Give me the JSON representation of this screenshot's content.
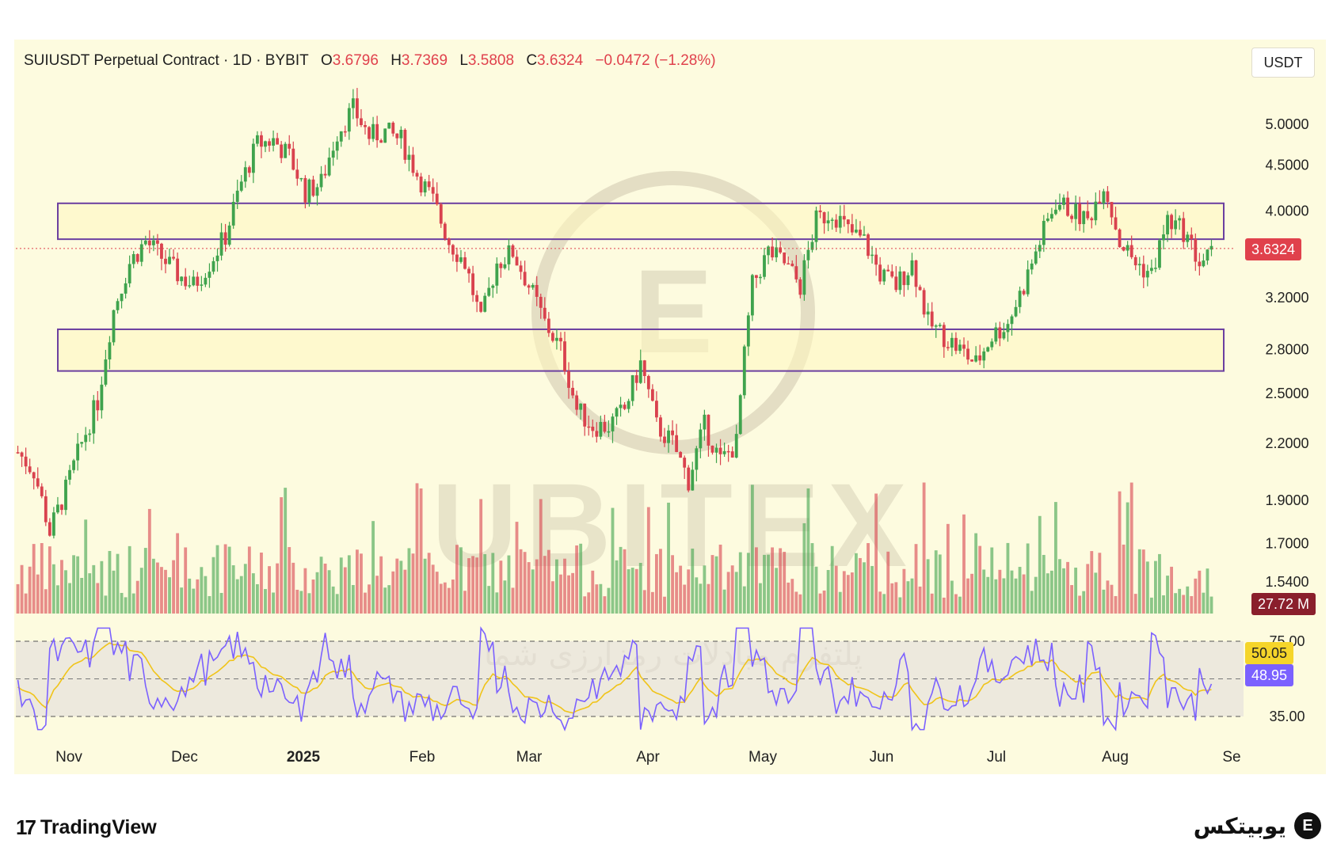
{
  "header": {
    "symbol": "SUIUSDT Perpetual Contract · 1D · BYBIT",
    "o_label": "O",
    "o_value": "3.6796",
    "h_label": "H",
    "h_value": "3.7369",
    "l_label": "L",
    "l_value": "3.5808",
    "c_label": "C",
    "c_value": "3.6324",
    "change": "−0.0472 (−1.28%)"
  },
  "currency_button": "USDT",
  "price_badge": "3.6324",
  "volume_badge": "27.72 M",
  "rsi_badges": {
    "ma": "50.05",
    "rsi": "48.95"
  },
  "watermark": {
    "brand": "UBITEX",
    "tagline": "پلتفرم مبادلات رمزارزی شما"
  },
  "footer": {
    "tradingview": "TradingView",
    "ubitex": "یوبیتکس"
  },
  "colors": {
    "up": "#3fa34d",
    "down": "#d9424e",
    "zone": "#6b3fa0",
    "rsi": "#7b61ff",
    "rsi_ma": "#f0c419",
    "price_line": "#e0414c"
  },
  "chart_data": {
    "type": "candlestick",
    "scale": "log",
    "price_axis_ticks": [
      5.0,
      4.5,
      4.0,
      3.2,
      2.8,
      2.5,
      2.2,
      1.9,
      1.7,
      1.54
    ],
    "price_axis_labels": [
      "5.0000",
      "4.5000",
      "4.0000",
      "3.2000",
      "2.8000",
      "2.5000",
      "2.2000",
      "1.9000",
      "1.7000",
      "1.5400"
    ],
    "time_axis_labels": [
      "Nov",
      "Dec",
      "2025",
      "Feb",
      "Mar",
      "Apr",
      "May",
      "Jun",
      "Jul",
      "Aug",
      "Se"
    ],
    "bold_time_labels": [
      "2025"
    ],
    "ohlc_close_series_approx": [
      2.15,
      2.05,
      1.75,
      1.95,
      2.2,
      2.45,
      3.1,
      3.5,
      3.7,
      3.55,
      3.4,
      3.3,
      3.5,
      3.75,
      4.3,
      4.75,
      4.8,
      4.6,
      4.2,
      4.3,
      4.9,
      5.2,
      4.85,
      4.9,
      4.8,
      4.4,
      4.1,
      3.7,
      3.5,
      3.0,
      3.5,
      3.6,
      3.3,
      3.0,
      2.8,
      2.4,
      2.3,
      2.3,
      2.4,
      2.7,
      2.3,
      2.2,
      2.0,
      2.3,
      2.1,
      2.2,
      3.3,
      3.6,
      3.5,
      3.3,
      3.9,
      4.0,
      3.8,
      3.7,
      3.4,
      3.3,
      3.5,
      3.0,
      2.9,
      2.8,
      2.7,
      2.9,
      3.0,
      3.3,
      3.7,
      4.1,
      4.0,
      3.9,
      4.3,
      3.7,
      3.5,
      3.4,
      3.9,
      3.8,
      3.5,
      3.6
    ],
    "resistance_zone": [
      3.72,
      4.08
    ],
    "support_zone": [
      2.65,
      2.95
    ],
    "last_price": 3.6324,
    "volume_last": "27.72 M",
    "rsi": {
      "levels": [
        35,
        75
      ],
      "level_labels": [
        "75.00",
        "35.00"
      ],
      "rsi_last": 48.95,
      "ma_last": 50.05
    }
  }
}
